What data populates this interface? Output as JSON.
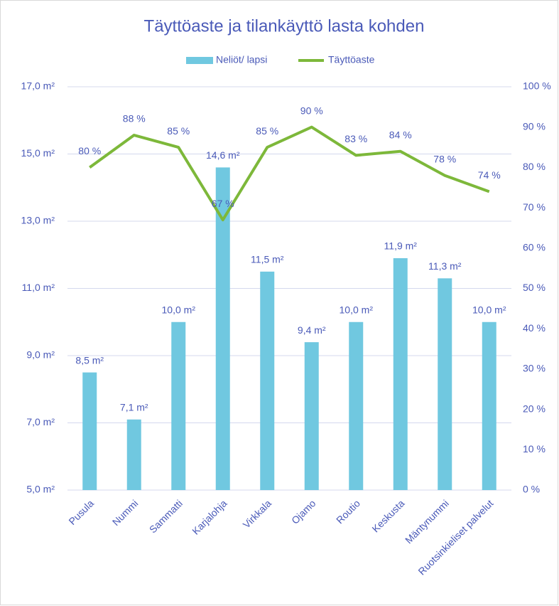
{
  "chart_data": {
    "type": "bar",
    "title": "Täyttöaste ja tilankäyttö lasta kohden",
    "categories": [
      "Pusula",
      "Nummi",
      "Sammatti",
      "Karjalohja",
      "Virkkala",
      "Ojamo",
      "Routio",
      "Keskusta",
      "Mäntynummi",
      "Ruotsinkieliset palvelut"
    ],
    "series": [
      {
        "name": "Neliöt/ lapsi",
        "color": "#70c8e0",
        "values": [
          8.5,
          7.1,
          10.0,
          14.6,
          11.5,
          9.4,
          10.0,
          11.9,
          11.3,
          10.0
        ],
        "value_labels": [
          "8,5 m²",
          "7,1 m²",
          "10,0 m²",
          "14,6 m²",
          "11,5 m²",
          "9,4 m²",
          "10,0 m²",
          "11,9 m²",
          "11,3 m²",
          "10,0 m²"
        ]
      },
      {
        "name": "Täyttöaste",
        "color": "#7db83a",
        "type": "line",
        "axis": "y2",
        "values": [
          80,
          88,
          85,
          67,
          85,
          90,
          83,
          84,
          78,
          74
        ],
        "value_labels": [
          "80 %",
          "88 %",
          "85 %",
          "67 %",
          "85 %",
          "90 %",
          "83 %",
          "84 %",
          "78 %",
          "74 %"
        ]
      }
    ],
    "ylim": [
      5,
      17
    ],
    "yticks": [
      {
        "value": 5,
        "label": "5,0 m²"
      },
      {
        "value": 7,
        "label": "7,0 m²"
      },
      {
        "value": 9,
        "label": "9,0 m²"
      },
      {
        "value": 11,
        "label": "11,0 m²"
      },
      {
        "value": 13,
        "label": "13,0 m²"
      },
      {
        "value": 15,
        "label": "15,0 m²"
      },
      {
        "value": 17,
        "label": "17,0 m²"
      }
    ],
    "y2lim": [
      0,
      100
    ],
    "y2ticks": [
      {
        "value": 0,
        "label": "0 %"
      },
      {
        "value": 10,
        "label": "10 %"
      },
      {
        "value": 20,
        "label": "20 %"
      },
      {
        "value": 30,
        "label": "30 %"
      },
      {
        "value": 40,
        "label": "40 %"
      },
      {
        "value": 50,
        "label": "50 %"
      },
      {
        "value": 60,
        "label": "60 %"
      },
      {
        "value": 70,
        "label": "70 %"
      },
      {
        "value": 80,
        "label": "80 %"
      },
      {
        "value": 90,
        "label": "90 %"
      },
      {
        "value": 100,
        "label": "100 %"
      }
    ],
    "grid": true,
    "legend": "top"
  }
}
